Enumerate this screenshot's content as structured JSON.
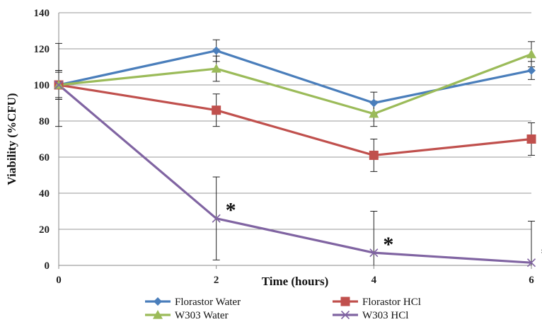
{
  "chart_data": {
    "type": "line",
    "title": "",
    "xlabel": "Time (hours)",
    "ylabel": "Viability (%CFU)",
    "x": [
      0,
      2,
      4,
      6
    ],
    "xlim": [
      0,
      6
    ],
    "ylim": [
      0,
      140
    ],
    "x_ticks": [
      "0",
      "2",
      "4",
      "6"
    ],
    "y_ticks": [
      "0",
      "20",
      "40",
      "60",
      "80",
      "100",
      "120",
      "140"
    ],
    "grid": "horizontal",
    "legend_position": "bottom",
    "series": [
      {
        "name": "Florastor Water",
        "color": "#4A7EBB",
        "marker": "diamond",
        "values": [
          100,
          119,
          90,
          108
        ],
        "errors": [
          8,
          6,
          6,
          5
        ]
      },
      {
        "name": "Florastor HCl",
        "color": "#C0504D",
        "marker": "square",
        "values": [
          100,
          86,
          61,
          70
        ],
        "errors": [
          8,
          9,
          9,
          9
        ]
      },
      {
        "name": "W303 Water",
        "color": "#9BBB59",
        "marker": "triangle",
        "values": [
          100,
          109,
          84,
          117
        ],
        "errors": [
          7,
          7,
          7,
          7
        ]
      },
      {
        "name": "W303 HCl",
        "color": "#8064A2",
        "marker": "x",
        "values": [
          100,
          26,
          7,
          1.5
        ],
        "errors": [
          23,
          23,
          23,
          23
        ]
      }
    ],
    "annotations": [
      {
        "text": "*",
        "x": 2,
        "y": 26
      },
      {
        "text": "*",
        "x": 4,
        "y": 7
      },
      {
        "text": "*",
        "x": 6,
        "y": 1.5
      }
    ]
  }
}
